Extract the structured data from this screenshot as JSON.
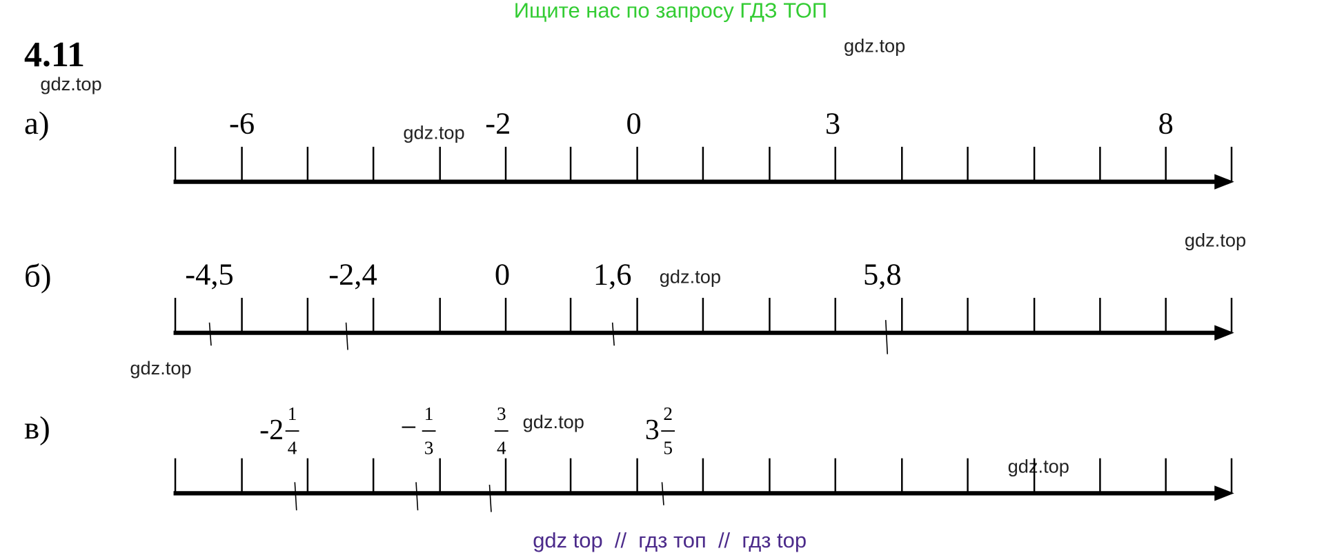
{
  "header": {
    "banner": "Ищите нас по запросу ГДЗ ТОП",
    "title": "4.11",
    "footer": "gdz top  //  гдз топ  //  гдз top"
  },
  "watermarks": [
    "gdz.top",
    "gdz.top",
    "gdz.top",
    "gdz.top",
    "gdz.top",
    "gdz.top",
    "gdz.top",
    "gdz.top"
  ],
  "problems": [
    {
      "label": "а)",
      "points": [
        {
          "text": "-6"
        },
        {
          "text": "-2"
        },
        {
          "text": "0"
        },
        {
          "text": "3"
        },
        {
          "text": "8"
        }
      ]
    },
    {
      "label": "б)",
      "points": [
        {
          "text": "-4,5"
        },
        {
          "text": "-2,4"
        },
        {
          "text": "0"
        },
        {
          "text": "1,6"
        },
        {
          "text": "5,8"
        }
      ]
    },
    {
      "label": "в)",
      "points": [
        {
          "whole": "-2",
          "num": "1",
          "den": "4"
        },
        {
          "sign": "−",
          "num": "1",
          "den": "3"
        },
        {
          "num": "3",
          "den": "4"
        },
        {
          "whole": "3",
          "num": "2",
          "den": "5"
        }
      ]
    }
  ]
}
